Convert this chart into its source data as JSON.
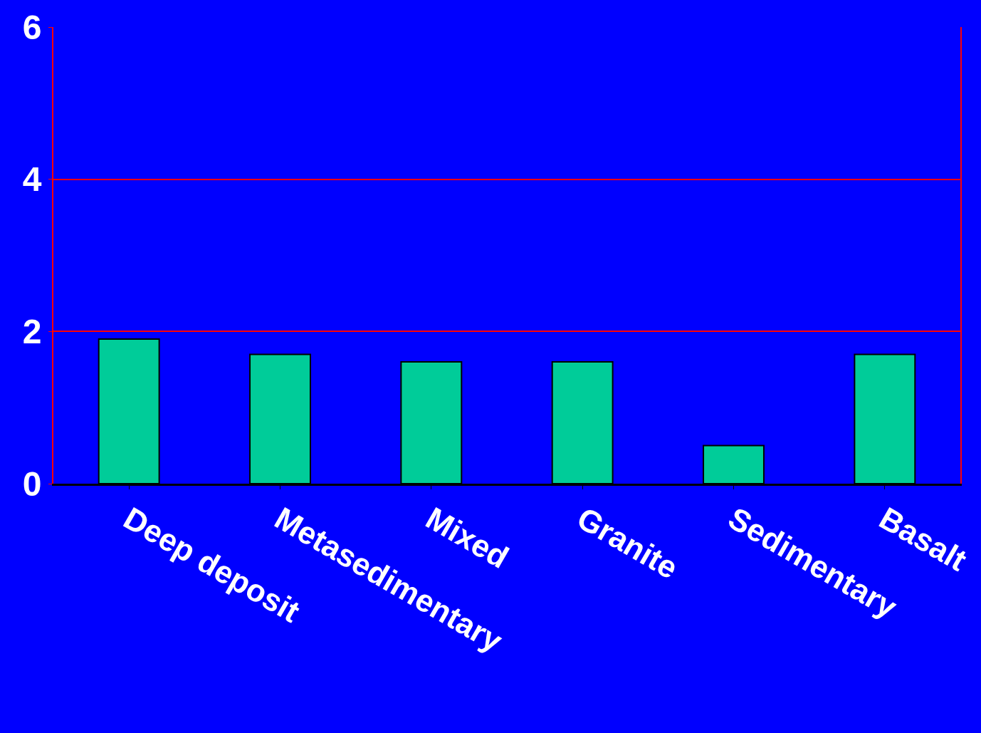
{
  "chart_data": {
    "type": "bar",
    "categories": [
      "Deep deposit",
      "Metasedimentary",
      "Mixed",
      "Granite",
      "Sedimentary",
      "Basalt"
    ],
    "values": [
      1.9,
      1.7,
      1.6,
      1.6,
      0.5,
      1.7
    ],
    "color": "#00cc99",
    "ylim": [
      0,
      6
    ],
    "yticks": [
      0,
      2,
      4,
      6
    ],
    "grid": "y"
  }
}
